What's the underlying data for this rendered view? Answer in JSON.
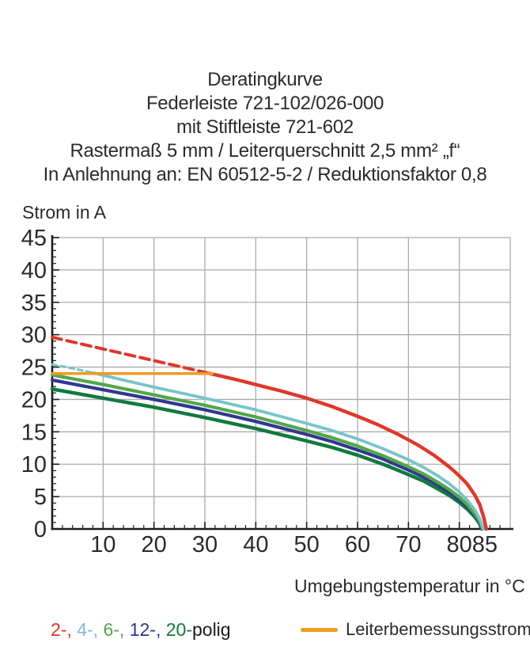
{
  "title_lines": [
    "Deratingkurve",
    "Federleiste 721-102/026-000",
    "mit Stiftleiste 721-602",
    "Rastermaß 5 mm / Leiterquerschnitt 2,5 mm² „f“",
    "In Anlehnung an: EN 60512-5-2 / Reduktionsfaktor 0,8"
  ],
  "chart_data": {
    "type": "line",
    "title": "Deratingkurve Federleiste 721-102/026-000 mit Stiftleiste 721-602",
    "xlabel": "Umgebungstemperatur in °C",
    "ylabel": "Strom in A",
    "xlim": [
      0,
      90
    ],
    "ylim": [
      0,
      45
    ],
    "grid": true,
    "grid_color": "#ababab",
    "axis_color": "#1c1c1c",
    "x_gridlines": [
      10,
      20,
      30,
      40,
      50,
      60,
      70,
      80,
      90
    ],
    "y_gridlines": [
      5,
      10,
      15,
      20,
      25,
      30,
      35,
      40,
      45
    ],
    "x_major_ticks": [
      10,
      20,
      30,
      40,
      50,
      60,
      70,
      80,
      85
    ],
    "y_tick_labels": [
      0,
      5,
      10,
      15,
      20,
      25,
      30,
      35,
      40,
      45
    ],
    "x_minor_step": 2,
    "y_minor_step": 1,
    "series": [
      {
        "name": "20-polig",
        "color": "#117a3e",
        "width": 4.5,
        "dash": "",
        "points": [
          [
            0,
            21.6
          ],
          [
            10,
            20.2
          ],
          [
            20,
            18.8
          ],
          [
            30,
            17.2
          ],
          [
            40,
            15.5
          ],
          [
            50,
            13.6
          ],
          [
            55,
            12.6
          ],
          [
            60,
            11.4
          ],
          [
            65,
            10.0
          ],
          [
            70,
            8.4
          ],
          [
            73,
            7.4
          ],
          [
            76,
            6.1
          ],
          [
            78,
            5.2
          ],
          [
            80,
            4.1
          ],
          [
            81.5,
            3.1
          ],
          [
            83,
            1.9
          ],
          [
            84,
            0.8
          ],
          [
            84.4,
            0
          ]
        ]
      },
      {
        "name": "12-polig",
        "color": "#313790",
        "width": 4.2,
        "dash": "",
        "points": [
          [
            0,
            23.0
          ],
          [
            10,
            21.5
          ],
          [
            20,
            20.0
          ],
          [
            30,
            18.4
          ],
          [
            40,
            16.6
          ],
          [
            50,
            14.6
          ],
          [
            55,
            13.5
          ],
          [
            60,
            12.2
          ],
          [
            65,
            10.8
          ],
          [
            70,
            9.1
          ],
          [
            73,
            8.0
          ],
          [
            76,
            6.7
          ],
          [
            78,
            5.7
          ],
          [
            80,
            4.5
          ],
          [
            81.5,
            3.5
          ],
          [
            83,
            2.2
          ],
          [
            84,
            1.0
          ],
          [
            84.5,
            0
          ]
        ]
      },
      {
        "name": "6-polig",
        "color": "#52a74a",
        "width": 4.2,
        "dash": "",
        "points": [
          [
            0,
            23.8
          ],
          [
            10,
            22.3
          ],
          [
            20,
            20.7
          ],
          [
            30,
            19.1
          ],
          [
            40,
            17.3
          ],
          [
            50,
            15.2
          ],
          [
            55,
            14.1
          ],
          [
            60,
            12.8
          ],
          [
            65,
            11.3
          ],
          [
            70,
            9.6
          ],
          [
            73,
            8.5
          ],
          [
            76,
            7.1
          ],
          [
            78,
            6.1
          ],
          [
            80,
            4.9
          ],
          [
            81.5,
            3.8
          ],
          [
            83,
            2.4
          ],
          [
            84,
            1.2
          ],
          [
            84.6,
            0
          ]
        ]
      },
      {
        "name": "4-polig-dashed",
        "color": "#78c4c9",
        "width": 3.2,
        "dash": "6 5",
        "points": [
          [
            0,
            25.4
          ],
          [
            4,
            24.8
          ],
          [
            8,
            24.1
          ]
        ]
      },
      {
        "name": "4-polig",
        "color": "#78c4c9",
        "width": 3.8,
        "dash": "",
        "points": [
          [
            8,
            24.1
          ],
          [
            15,
            22.8
          ],
          [
            20,
            21.9
          ],
          [
            30,
            20.2
          ],
          [
            40,
            18.4
          ],
          [
            50,
            16.3
          ],
          [
            55,
            15.2
          ],
          [
            60,
            13.9
          ],
          [
            65,
            12.4
          ],
          [
            70,
            10.7
          ],
          [
            73,
            9.5
          ],
          [
            76,
            8.1
          ],
          [
            78,
            7.0
          ],
          [
            80,
            5.7
          ],
          [
            81.5,
            4.5
          ],
          [
            83,
            3.0
          ],
          [
            84,
            1.6
          ],
          [
            84.7,
            0
          ]
        ]
      },
      {
        "name": "2-polig-dashed",
        "color": "#e0372a",
        "width": 4.0,
        "dash": "12 7",
        "points": [
          [
            0,
            29.6
          ],
          [
            10,
            27.8
          ],
          [
            20,
            26.0
          ],
          [
            31,
            24.0
          ]
        ]
      },
      {
        "name": "2-polig",
        "color": "#e0372a",
        "width": 4.4,
        "dash": "",
        "points": [
          [
            31,
            24.0
          ],
          [
            36,
            23.1
          ],
          [
            40,
            22.3
          ],
          [
            45,
            21.3
          ],
          [
            50,
            20.2
          ],
          [
            55,
            18.9
          ],
          [
            60,
            17.4
          ],
          [
            64,
            16.1
          ],
          [
            68,
            14.6
          ],
          [
            72,
            12.9
          ],
          [
            75,
            11.4
          ],
          [
            78,
            9.6
          ],
          [
            80,
            8.2
          ],
          [
            81.5,
            7.0
          ],
          [
            83,
            5.3
          ],
          [
            84,
            3.8
          ],
          [
            84.8,
            1.8
          ],
          [
            85.3,
            0
          ]
        ]
      },
      {
        "name": "Leiterbemessungsstrom",
        "color": "#f09c20",
        "width": 3.5,
        "dash": "",
        "points": [
          [
            0,
            24
          ],
          [
            31.5,
            24
          ]
        ]
      }
    ]
  },
  "legend": {
    "pole_items": [
      {
        "label": "2-, ",
        "color": "#dd3526"
      },
      {
        "label": "4-, ",
        "color": "#82b7d8"
      },
      {
        "label": "6-, ",
        "color": "#4fa749"
      },
      {
        "label": "12-, ",
        "color": "#2f3590"
      },
      {
        "label": "20-",
        "color": "#0f7a3c"
      },
      {
        "label": "polig",
        "color": "#1a1a1a"
      }
    ],
    "rated": {
      "label": "Leiterbemessungsstrom",
      "swatch_color": "#f09c20"
    }
  }
}
